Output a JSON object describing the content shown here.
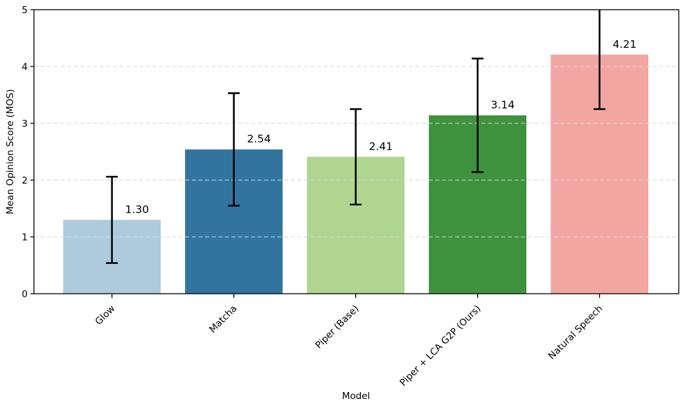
{
  "figure": {
    "background": "#ffffff"
  },
  "chart_data": {
    "type": "bar",
    "title": "",
    "xlabel": "Model",
    "ylabel": "Mean Opinion Score (MOS)",
    "categories": [
      "Glow",
      "Matcha",
      "Piper (Base)",
      "Piper + LCA G2P (Ours)",
      "Natural Speech"
    ],
    "values": [
      1.3,
      2.54,
      2.41,
      3.14,
      4.21
    ],
    "value_labels": [
      "1.30",
      "2.54",
      "2.41",
      "3.14",
      "4.21"
    ],
    "errors": [
      0.76,
      0.99,
      0.84,
      1.0,
      0.96
    ],
    "bar_colors": [
      "#adcbdd",
      "#32749f",
      "#b0d590",
      "#3f923d",
      "#f2a6a2"
    ],
    "error_bar_color": "#000000",
    "ylim": [
      0,
      5
    ],
    "yticks": [
      0,
      1,
      2,
      3,
      4,
      5
    ],
    "grid": {
      "axis": "y",
      "style": "dashed",
      "color": "#d4d4d4",
      "on": true,
      "above_bars": true
    },
    "legend": "none",
    "x_tick_rotation_deg": 45
  }
}
